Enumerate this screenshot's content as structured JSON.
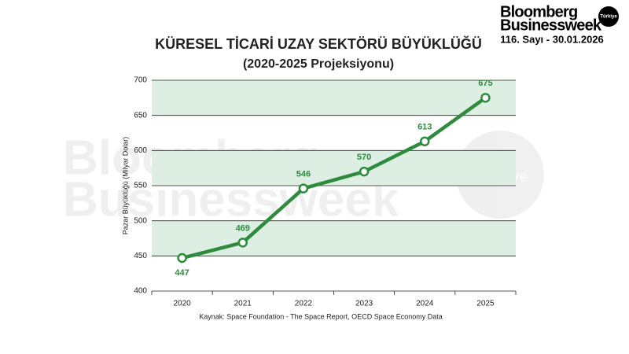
{
  "chart_data": {
    "type": "line",
    "title": "KÜRESEL TİCARİ UZAY SEKTÖRÜ BÜYÜKLÜĞÜ",
    "subtitle": "(2020-2025 Projeksiyonu)",
    "y_label": "Pazar Büyüklüğü (Milyar Dolar)",
    "source": "Kaynak: Space Foundation - The Space Report, OECD Space Economy Data",
    "categories": [
      "2020",
      "2021",
      "2022",
      "2023",
      "2024",
      "2025"
    ],
    "values": [
      447,
      469,
      546,
      570,
      613,
      675
    ],
    "color": "#2e8b3e",
    "ylim": [
      400,
      700
    ],
    "yticks": [
      400,
      450,
      500,
      550,
      600,
      650,
      700
    ],
    "band_color": "#dcefe2"
  },
  "header": {
    "brand_line1": "Bloomberg",
    "brand_line2": "Businessweek",
    "badge": "Türkiye",
    "issue": "116. Sayı - 30.01.2026"
  },
  "watermark": {
    "line1": "Bloomberg",
    "line2": "Businessweek",
    "badge": "Türkiye"
  }
}
